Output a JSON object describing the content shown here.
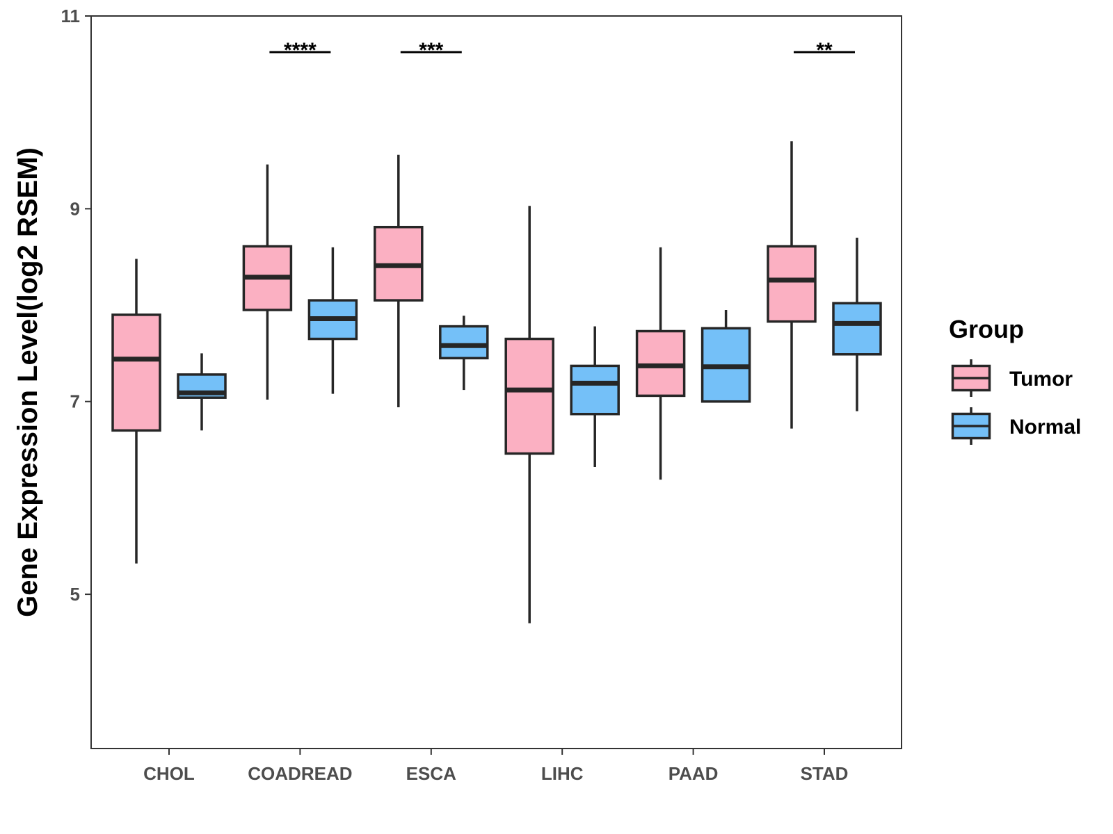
{
  "chart_data": {
    "type": "boxplot",
    "ylabel": "Gene Expression Level(log2 RSEM)",
    "xlabel": "",
    "ylim": [
      3.4,
      11
    ],
    "yticks": [
      5,
      7,
      9,
      11
    ],
    "legend": {
      "title": "Group",
      "position": "right",
      "entries": [
        {
          "name": "Tumor",
          "color": "#FBB0C2"
        },
        {
          "name": "Normal",
          "color": "#74C0F8"
        }
      ]
    },
    "categories": [
      "CHOL",
      "COADREAD",
      "ESCA",
      "LIHC",
      "PAAD",
      "STAD"
    ],
    "series": [
      {
        "name": "Tumor",
        "color": "#FBB0C2",
        "boxes": [
          {
            "whisker_low": 5.32,
            "q1": 6.7,
            "median": 7.44,
            "q3": 7.9,
            "whisker_high": 8.48
          },
          {
            "whisker_low": 7.02,
            "q1": 7.95,
            "median": 8.29,
            "q3": 8.61,
            "whisker_high": 9.46
          },
          {
            "whisker_low": 6.94,
            "q1": 8.05,
            "median": 8.41,
            "q3": 8.81,
            "whisker_high": 9.56
          },
          {
            "whisker_low": 4.7,
            "q1": 6.46,
            "median": 7.12,
            "q3": 7.65,
            "whisker_high": 9.03
          },
          {
            "whisker_low": 6.19,
            "q1": 7.06,
            "median": 7.37,
            "q3": 7.73,
            "whisker_high": 8.6
          },
          {
            "whisker_low": 6.72,
            "q1": 7.83,
            "median": 8.26,
            "q3": 8.61,
            "whisker_high": 9.7
          }
        ]
      },
      {
        "name": "Normal",
        "color": "#74C0F8",
        "boxes": [
          {
            "whisker_low": 6.7,
            "q1": 7.04,
            "median": 7.09,
            "q3": 7.28,
            "whisker_high": 7.5
          },
          {
            "whisker_low": 7.08,
            "q1": 7.65,
            "median": 7.86,
            "q3": 8.05,
            "whisker_high": 8.6
          },
          {
            "whisker_low": 7.12,
            "q1": 7.45,
            "median": 7.58,
            "q3": 7.78,
            "whisker_high": 7.89
          },
          {
            "whisker_low": 6.32,
            "q1": 6.87,
            "median": 7.19,
            "q3": 7.37,
            "whisker_high": 7.78
          },
          {
            "whisker_low": 7.0,
            "q1": 7.0,
            "median": 7.36,
            "q3": 7.76,
            "whisker_high": 7.95
          },
          {
            "whisker_low": 6.9,
            "q1": 7.49,
            "median": 7.81,
            "q3": 8.02,
            "whisker_high": 8.7
          }
        ]
      }
    ],
    "significance": [
      {
        "category": "COADREAD",
        "label": "****"
      },
      {
        "category": "ESCA",
        "label": "***"
      },
      {
        "category": "STAD",
        "label": "**"
      }
    ]
  }
}
